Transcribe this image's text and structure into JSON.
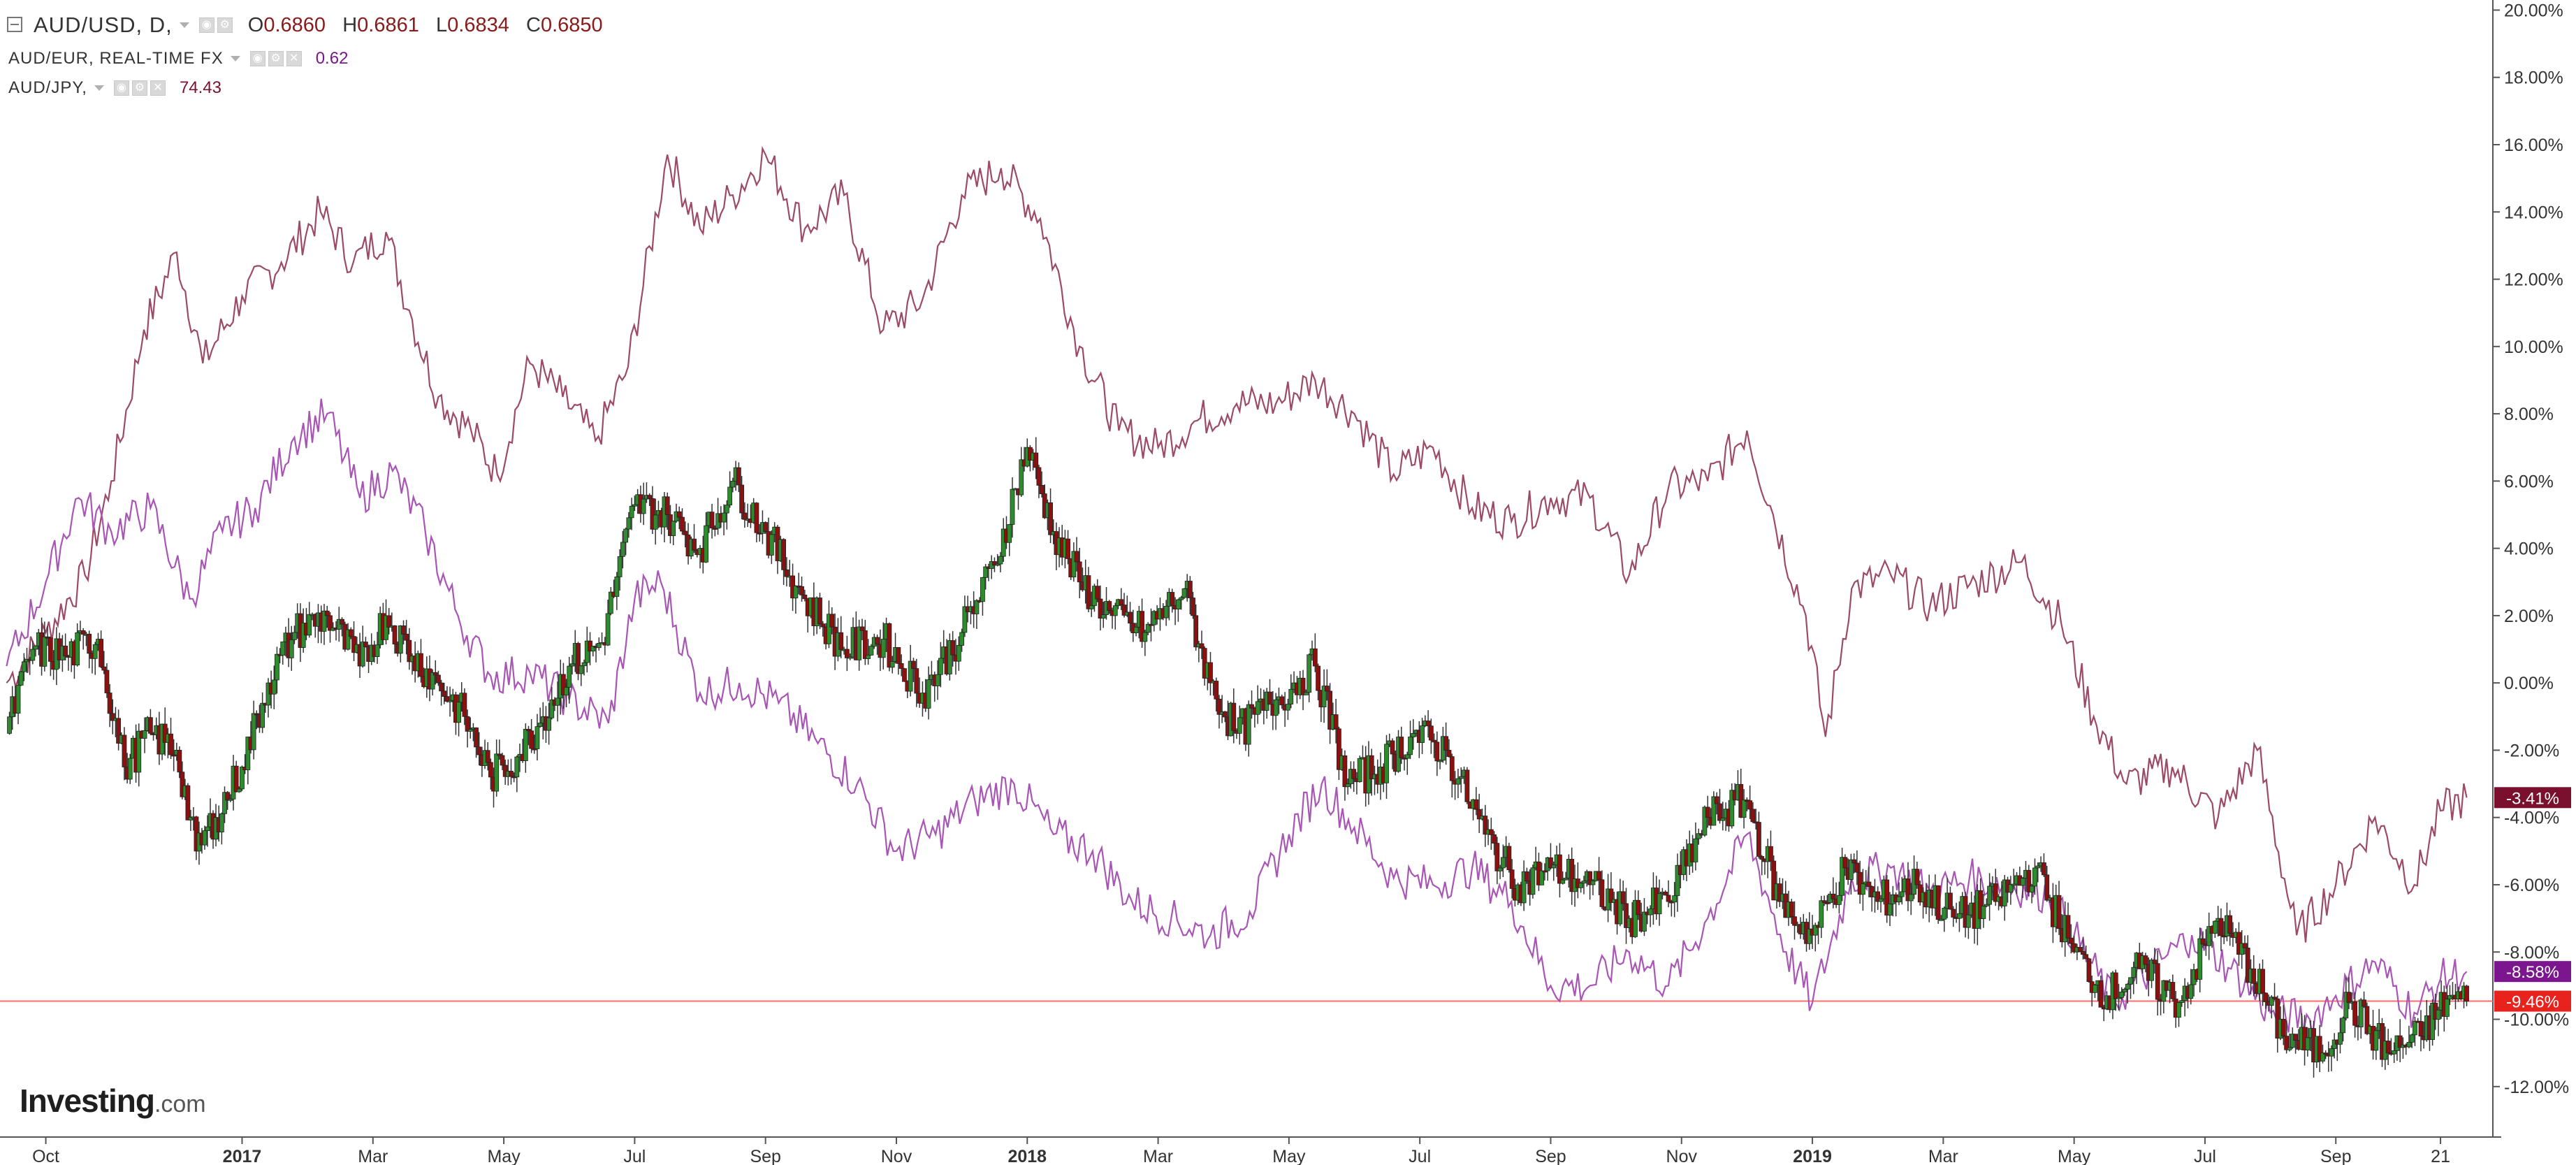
{
  "legend": {
    "main_symbol": "AUD/USD, D,",
    "ohlc": {
      "o_label": "O",
      "o_value": "0.6860",
      "h_label": "H",
      "h_value": "0.6861",
      "l_label": "L",
      "l_value": "0.6834",
      "c_label": "C",
      "c_value": "0.6850"
    },
    "series2_symbol": "AUD/EUR, REAL-TIME FX",
    "series2_value": "0.62",
    "series3_symbol": "AUD/JPY,",
    "series3_value": "74.43"
  },
  "logo": {
    "main": "Investing",
    "suffix": ".com"
  },
  "chart_data": {
    "type": "line",
    "y_axis_ticks": [
      "20.00%",
      "18.00%",
      "16.00%",
      "14.00%",
      "12.00%",
      "10.00%",
      "8.00%",
      "6.00%",
      "4.00%",
      "2.00%",
      "0.00%",
      "-2.00%",
      "-4.00%",
      "-6.00%",
      "-8.00%",
      "-10.00%",
      "-12.00%"
    ],
    "y_tick_values": [
      20,
      18,
      16,
      14,
      12,
      10,
      8,
      6,
      4,
      2,
      0,
      -2,
      -4,
      -6,
      -8,
      -10,
      -12
    ],
    "ylim": [
      -13.5,
      20.3
    ],
    "x_axis_ticks": [
      "Oct",
      "2017",
      "Mar",
      "May",
      "Jul",
      "Sep",
      "Nov",
      "2018",
      "Mar",
      "May",
      "Jul",
      "Sep",
      "Nov",
      "2019",
      "Mar",
      "May",
      "Jul",
      "Sep",
      "21"
    ],
    "x_tick_bold": [
      "2017",
      "2018",
      "2019"
    ],
    "x_tick_positions": [
      1.0,
      4.0,
      6.0,
      8.0,
      10.0,
      12.0,
      14.0,
      16.0,
      18.0,
      20.0,
      22.0,
      24.0,
      26.0,
      28.0,
      30.0,
      32.0,
      34.0,
      36.0,
      37.6
    ],
    "xlim": [
      0.3,
      38.4
    ],
    "reference_line": {
      "value": -9.46,
      "color": "#ff6b6b"
    },
    "series": [
      {
        "color": "#9c4a66",
        "last_label": "-3.41%",
        "label_color": "#7a0f2e",
        "points": [
          [
            0.4,
            0.0
          ],
          [
            1.0,
            1.5
          ],
          [
            1.6,
            3.2
          ],
          [
            2.0,
            6.0
          ],
          [
            2.5,
            10.5
          ],
          [
            3.0,
            12.8
          ],
          [
            3.4,
            9.5
          ],
          [
            4.0,
            11.5
          ],
          [
            4.6,
            12.5
          ],
          [
            5.2,
            14.0
          ],
          [
            5.7,
            12.5
          ],
          [
            6.2,
            13.4
          ],
          [
            6.6,
            10.8
          ],
          [
            7.0,
            8.5
          ],
          [
            7.5,
            7.5
          ],
          [
            7.9,
            6.2
          ],
          [
            8.4,
            9.5
          ],
          [
            8.9,
            8.5
          ],
          [
            9.4,
            7.2
          ],
          [
            9.9,
            9.4
          ],
          [
            10.5,
            15.7
          ],
          [
            11.0,
            13.5
          ],
          [
            11.5,
            14.5
          ],
          [
            12.0,
            15.7
          ],
          [
            12.6,
            13.5
          ],
          [
            13.2,
            14.5
          ],
          [
            13.8,
            10.5
          ],
          [
            14.4,
            11.4
          ],
          [
            15.0,
            14.5
          ],
          [
            15.6,
            15.3
          ],
          [
            16.2,
            13.8
          ],
          [
            16.8,
            10.0
          ],
          [
            17.4,
            7.5
          ],
          [
            18.0,
            7.0
          ],
          [
            18.6,
            7.8
          ],
          [
            19.2,
            8.3
          ],
          [
            19.8,
            8.3
          ],
          [
            20.4,
            9.0
          ],
          [
            21.0,
            8.0
          ],
          [
            21.6,
            6.2
          ],
          [
            22.2,
            7.0
          ],
          [
            22.8,
            5.2
          ],
          [
            23.4,
            4.8
          ],
          [
            24.0,
            5.5
          ],
          [
            24.6,
            5.5
          ],
          [
            25.2,
            3.2
          ],
          [
            25.8,
            5.8
          ],
          [
            26.4,
            6.0
          ],
          [
            27.0,
            7.5
          ],
          [
            27.4,
            5.0
          ],
          [
            27.9,
            2.0
          ],
          [
            28.2,
            -1.6
          ],
          [
            28.6,
            2.8
          ],
          [
            29.2,
            3.2
          ],
          [
            29.8,
            2.3
          ],
          [
            30.5,
            3.0
          ],
          [
            31.2,
            3.6
          ],
          [
            31.8,
            1.8
          ],
          [
            32.3,
            -1.0
          ],
          [
            32.8,
            -3.0
          ],
          [
            33.5,
            -2.5
          ],
          [
            34.2,
            -4.0
          ],
          [
            34.8,
            -2.0
          ],
          [
            35.4,
            -7.5
          ],
          [
            36.0,
            -6.0
          ],
          [
            36.6,
            -4.0
          ],
          [
            37.2,
            -6.0
          ],
          [
            37.6,
            -3.8
          ],
          [
            38.0,
            -3.41
          ]
        ]
      },
      {
        "color": "#a855b5",
        "last_label": "-8.58%",
        "label_color": "#7b168e",
        "points": [
          [
            0.4,
            0.5
          ],
          [
            1.0,
            3.0
          ],
          [
            1.5,
            5.5
          ],
          [
            2.0,
            4.5
          ],
          [
            2.6,
            5.2
          ],
          [
            3.2,
            2.5
          ],
          [
            3.7,
            4.5
          ],
          [
            4.2,
            5.2
          ],
          [
            4.8,
            7.3
          ],
          [
            5.3,
            8.0
          ],
          [
            5.8,
            5.5
          ],
          [
            6.3,
            6.3
          ],
          [
            6.8,
            4.5
          ],
          [
            7.3,
            2.0
          ],
          [
            7.8,
            0.2
          ],
          [
            8.4,
            0.3
          ],
          [
            9.0,
            -0.5
          ],
          [
            9.6,
            -1.2
          ],
          [
            10.0,
            2.5
          ],
          [
            10.4,
            3.0
          ],
          [
            11.0,
            -0.3
          ],
          [
            11.6,
            0.0
          ],
          [
            12.2,
            -0.6
          ],
          [
            12.8,
            -1.8
          ],
          [
            13.4,
            -3.0
          ],
          [
            14.0,
            -5.0
          ],
          [
            14.6,
            -4.5
          ],
          [
            15.2,
            -3.5
          ],
          [
            15.8,
            -3.0
          ],
          [
            16.4,
            -4.5
          ],
          [
            17.0,
            -5.0
          ],
          [
            17.6,
            -6.5
          ],
          [
            18.2,
            -7.0
          ],
          [
            18.8,
            -7.5
          ],
          [
            19.4,
            -6.8
          ],
          [
            20.0,
            -4.5
          ],
          [
            20.5,
            -3.0
          ],
          [
            21.0,
            -4.3
          ],
          [
            21.6,
            -5.8
          ],
          [
            22.2,
            -6.0
          ],
          [
            22.8,
            -5.5
          ],
          [
            23.4,
            -6.5
          ],
          [
            24.0,
            -9.0
          ],
          [
            24.6,
            -9.0
          ],
          [
            25.2,
            -8.0
          ],
          [
            25.8,
            -9.0
          ],
          [
            26.4,
            -7.0
          ],
          [
            27.0,
            -4.5
          ],
          [
            27.6,
            -8.0
          ],
          [
            28.0,
            -9.5
          ],
          [
            28.6,
            -5.8
          ],
          [
            29.2,
            -5.5
          ],
          [
            29.8,
            -6.2
          ],
          [
            30.4,
            -5.8
          ],
          [
            31.0,
            -6.0
          ],
          [
            31.6,
            -6.3
          ],
          [
            32.0,
            -7.5
          ],
          [
            32.6,
            -9.5
          ],
          [
            33.2,
            -8.5
          ],
          [
            33.8,
            -7.5
          ],
          [
            34.4,
            -8.5
          ],
          [
            35.0,
            -9.8
          ],
          [
            35.6,
            -10.0
          ],
          [
            36.0,
            -9.3
          ],
          [
            36.6,
            -8.3
          ],
          [
            37.2,
            -9.8
          ],
          [
            37.6,
            -8.8
          ],
          [
            38.0,
            -8.58
          ]
        ]
      },
      {
        "color": "#2e8b2e",
        "down_color": "#8b1010",
        "last_label": "-9.46%",
        "label_color": "#e8231d",
        "kind": "candlestick",
        "points": [
          [
            0.4,
            -1.5
          ],
          [
            0.8,
            1.0
          ],
          [
            1.3,
            0.8
          ],
          [
            1.8,
            1.3
          ],
          [
            2.2,
            -2.5
          ],
          [
            2.6,
            -1.5
          ],
          [
            3.0,
            -2.0
          ],
          [
            3.3,
            -5.0
          ],
          [
            3.6,
            -4.0
          ],
          [
            4.0,
            -2.5
          ],
          [
            4.4,
            0.0
          ],
          [
            4.8,
            1.5
          ],
          [
            5.3,
            2.0
          ],
          [
            5.8,
            0.5
          ],
          [
            6.2,
            2.0
          ],
          [
            6.6,
            0.8
          ],
          [
            7.0,
            0.0
          ],
          [
            7.4,
            -1.0
          ],
          [
            7.8,
            -2.8
          ],
          [
            8.2,
            -2.2
          ],
          [
            8.6,
            -1.0
          ],
          [
            9.0,
            0.5
          ],
          [
            9.5,
            1.2
          ],
          [
            10.0,
            5.3
          ],
          [
            10.5,
            5.0
          ],
          [
            11.0,
            4.0
          ],
          [
            11.5,
            6.0
          ],
          [
            12.0,
            4.5
          ],
          [
            12.6,
            2.5
          ],
          [
            13.2,
            1.0
          ],
          [
            13.8,
            1.3
          ],
          [
            14.4,
            -0.3
          ],
          [
            15.0,
            1.5
          ],
          [
            15.5,
            3.5
          ],
          [
            16.0,
            7.0
          ],
          [
            16.4,
            4.5
          ],
          [
            16.8,
            3.0
          ],
          [
            17.3,
            2.0
          ],
          [
            17.8,
            1.5
          ],
          [
            18.4,
            2.8
          ],
          [
            18.8,
            0.0
          ],
          [
            19.2,
            -1.5
          ],
          [
            19.8,
            -0.5
          ],
          [
            20.4,
            0.5
          ],
          [
            20.9,
            -3.0
          ],
          [
            21.4,
            -2.5
          ],
          [
            21.9,
            -1.5
          ],
          [
            22.4,
            -2.0
          ],
          [
            23.0,
            -4.5
          ],
          [
            23.5,
            -6.0
          ],
          [
            24.0,
            -5.5
          ],
          [
            24.6,
            -6.0
          ],
          [
            25.2,
            -7.0
          ],
          [
            25.8,
            -6.5
          ],
          [
            26.4,
            -4.0
          ],
          [
            27.0,
            -3.5
          ],
          [
            27.5,
            -6.5
          ],
          [
            28.0,
            -7.5
          ],
          [
            28.5,
            -5.5
          ],
          [
            29.0,
            -6.5
          ],
          [
            29.6,
            -6.0
          ],
          [
            30.2,
            -7.0
          ],
          [
            30.8,
            -6.5
          ],
          [
            31.4,
            -5.5
          ],
          [
            32.0,
            -8.0
          ],
          [
            32.5,
            -9.3
          ],
          [
            33.0,
            -8.5
          ],
          [
            33.6,
            -9.5
          ],
          [
            34.2,
            -7.0
          ],
          [
            34.7,
            -8.5
          ],
          [
            35.2,
            -10.5
          ],
          [
            35.8,
            -11.0
          ],
          [
            36.2,
            -9.5
          ],
          [
            36.8,
            -11.0
          ],
          [
            37.3,
            -10.5
          ],
          [
            37.7,
            -9.4
          ],
          [
            38.0,
            -9.46
          ]
        ]
      }
    ]
  }
}
